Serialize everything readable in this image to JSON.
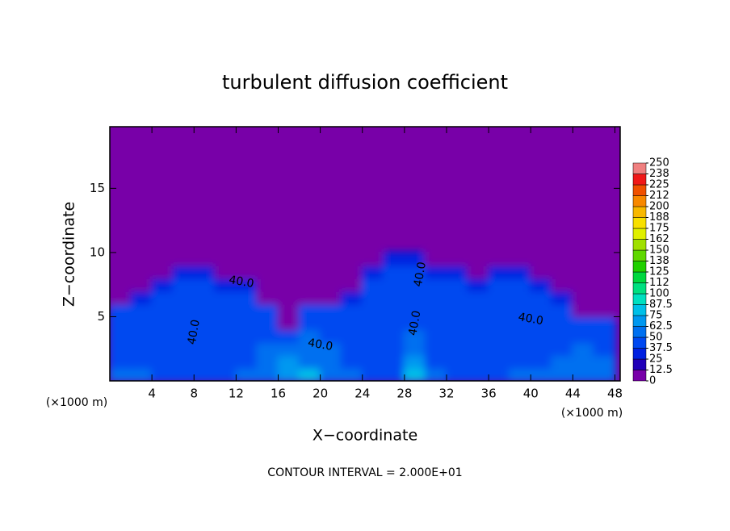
{
  "chart_data": {
    "type": "contour",
    "title": "turbulent diffusion coefficient",
    "x_label": "X−coordinate",
    "y_label": "Z−coordinate",
    "x_unit": "(×1000 m)",
    "x_unit_right": "(×1000 m)",
    "footnote": "CONTOUR INTERVAL = 2.000E+01",
    "contour_labels": [
      "40.0",
      "40.0",
      "40.0",
      "40.0",
      "40.0",
      "40.0"
    ],
    "xlim": [
      0,
      48.5
    ],
    "ylim": [
      0,
      19.8
    ],
    "xticks": [
      4,
      8,
      12,
      16,
      20,
      24,
      28,
      32,
      36,
      40,
      44,
      48
    ],
    "yticks": [
      5,
      10,
      15
    ],
    "background_value": 5,
    "field": {
      "x": [
        0,
        2,
        4,
        6,
        8,
        10,
        12,
        14,
        16,
        18,
        20,
        22,
        24,
        26,
        28,
        30,
        32,
        34,
        36,
        38,
        40,
        42,
        44,
        46,
        48
      ],
      "z": [
        0,
        1,
        2,
        3,
        4,
        5,
        6,
        7,
        8,
        9,
        10
      ],
      "values": [
        [
          50,
          50,
          45,
          45,
          45,
          45,
          50,
          55,
          70,
          75,
          60,
          50,
          45,
          45,
          80,
          50,
          45,
          45,
          45,
          50,
          50,
          55,
          60,
          55
        ],
        [
          45,
          40,
          40,
          40,
          40,
          40,
          45,
          50,
          65,
          60,
          55,
          45,
          40,
          40,
          70,
          45,
          40,
          40,
          40,
          40,
          45,
          50,
          55,
          50
        ],
        [
          45,
          40,
          40,
          40,
          40,
          40,
          45,
          50,
          55,
          55,
          50,
          45,
          40,
          40,
          55,
          45,
          40,
          40,
          40,
          40,
          45,
          45,
          50,
          45
        ],
        [
          45,
          40,
          40,
          40,
          40,
          40,
          45,
          45,
          45,
          50,
          45,
          40,
          40,
          40,
          50,
          40,
          40,
          40,
          40,
          40,
          40,
          45,
          45,
          45
        ],
        [
          45,
          40,
          40,
          40,
          40,
          40,
          40,
          40,
          5,
          45,
          45,
          40,
          40,
          40,
          45,
          40,
          40,
          40,
          40,
          40,
          40,
          40,
          40,
          40
        ],
        [
          40,
          40,
          40,
          40,
          40,
          40,
          40,
          40,
          5,
          40,
          40,
          40,
          40,
          40,
          40,
          40,
          40,
          40,
          40,
          40,
          40,
          40,
          5,
          5
        ],
        [
          5,
          35,
          40,
          40,
          40,
          40,
          40,
          5,
          5,
          5,
          5,
          35,
          40,
          40,
          40,
          40,
          40,
          40,
          40,
          40,
          40,
          35,
          5,
          5
        ],
        [
          5,
          5,
          35,
          40,
          40,
          35,
          25,
          5,
          5,
          5,
          5,
          5,
          40,
          40,
          40,
          40,
          40,
          35,
          40,
          40,
          35,
          5,
          5,
          5
        ],
        [
          5,
          5,
          5,
          25,
          25,
          5,
          5,
          5,
          5,
          5,
          5,
          5,
          35,
          40,
          40,
          35,
          25,
          5,
          25,
          25,
          5,
          5,
          5,
          5
        ],
        [
          5,
          5,
          5,
          5,
          5,
          5,
          5,
          5,
          5,
          5,
          5,
          5,
          5,
          25,
          25,
          5,
          5,
          5,
          5,
          5,
          5,
          5,
          5,
          5
        ]
      ]
    },
    "colorbar": {
      "ticks": [
        0,
        12.5,
        25,
        37.5,
        50,
        62.5,
        75,
        87.5,
        100,
        {
          "value": 112.5,
          "label": "112"
        },
        125,
        {
          "value": 137.5,
          "label": "138"
        },
        150,
        {
          "value": 162.5,
          "label": "162"
        },
        175,
        {
          "value": 187.5,
          "label": "188"
        },
        200,
        {
          "value": 212.5,
          "label": "212"
        },
        225,
        {
          "value": 237.5,
          "label": "238"
        },
        250
      ],
      "colors": [
        "#7800a8",
        "#2000b8",
        "#0020e0",
        "#0048f0",
        "#0070f0",
        "#0098f0",
        "#00c0e8",
        "#00e0c0",
        "#00e080",
        "#00d840",
        "#20d000",
        "#60d800",
        "#a0e000",
        "#e0f000",
        "#f8e000",
        "#f8b800",
        "#f88800",
        "#f05000",
        "#f01818",
        "#f08080"
      ]
    }
  }
}
